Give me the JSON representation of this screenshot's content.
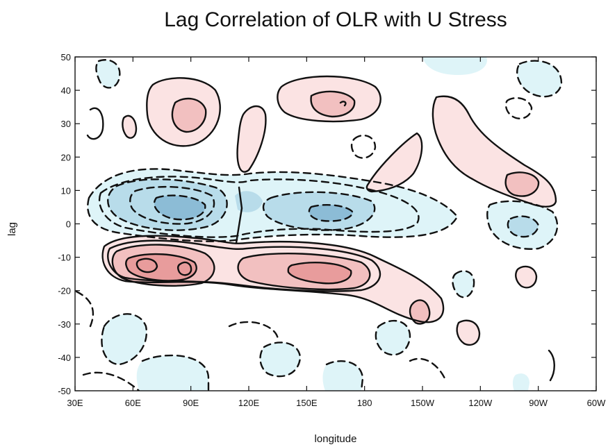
{
  "chart_data": {
    "type": "heatmap",
    "title": "Lag Correlation of OLR with U Stress",
    "xlabel": "longitude",
    "ylabel": "lag",
    "x_ticks": [
      "30E",
      "60E",
      "90E",
      "120E",
      "150E",
      "180",
      "150W",
      "120W",
      "90W",
      "60W"
    ],
    "x_range_deg_east": [
      30,
      300
    ],
    "y_ticks": [
      50,
      40,
      30,
      20,
      10,
      0,
      -10,
      -20,
      -30,
      -40,
      -50
    ],
    "ylim": [
      -50,
      50
    ],
    "contour_style": "solid lines positive, dashed lines negative",
    "colors": {
      "positive_light": "#fbe3e3",
      "positive_mid": "#f2c0c0",
      "positive_strong": "#e89c9c",
      "negative_light": "#def4f8",
      "negative_mid": "#b8dcea",
      "negative_strong": "#8cbcd6",
      "line": "#111111"
    },
    "features": [
      {
        "sign": "positive",
        "strength": "strong",
        "lon_range": [
          45,
          100
        ],
        "lag_range": [
          -8,
          -20
        ]
      },
      {
        "sign": "positive",
        "strength": "strong",
        "lon_range": [
          120,
          175
        ],
        "lag_range": [
          -9,
          -22
        ]
      },
      {
        "sign": "negative",
        "strength": "strong",
        "lon_range": [
          45,
          115
        ],
        "lag_range": [
          15,
          -3
        ]
      },
      {
        "sign": "negative",
        "strength": "mid",
        "lon_range": [
          115,
          190
        ],
        "lag_range": [
          12,
          -5
        ]
      },
      {
        "sign": "positive",
        "strength": "mid",
        "lon_range": [
          70,
          100
        ],
        "lag_range": [
          25,
          40
        ]
      },
      {
        "sign": "positive",
        "strength": "mid",
        "lon_range": [
          145,
          185
        ],
        "lag_range": [
          30,
          42
        ]
      },
      {
        "sign": "positive",
        "strength": "mid",
        "lon_range": [
          255,
          275
        ],
        "lag_range": [
          5,
          15
        ]
      }
    ]
  }
}
